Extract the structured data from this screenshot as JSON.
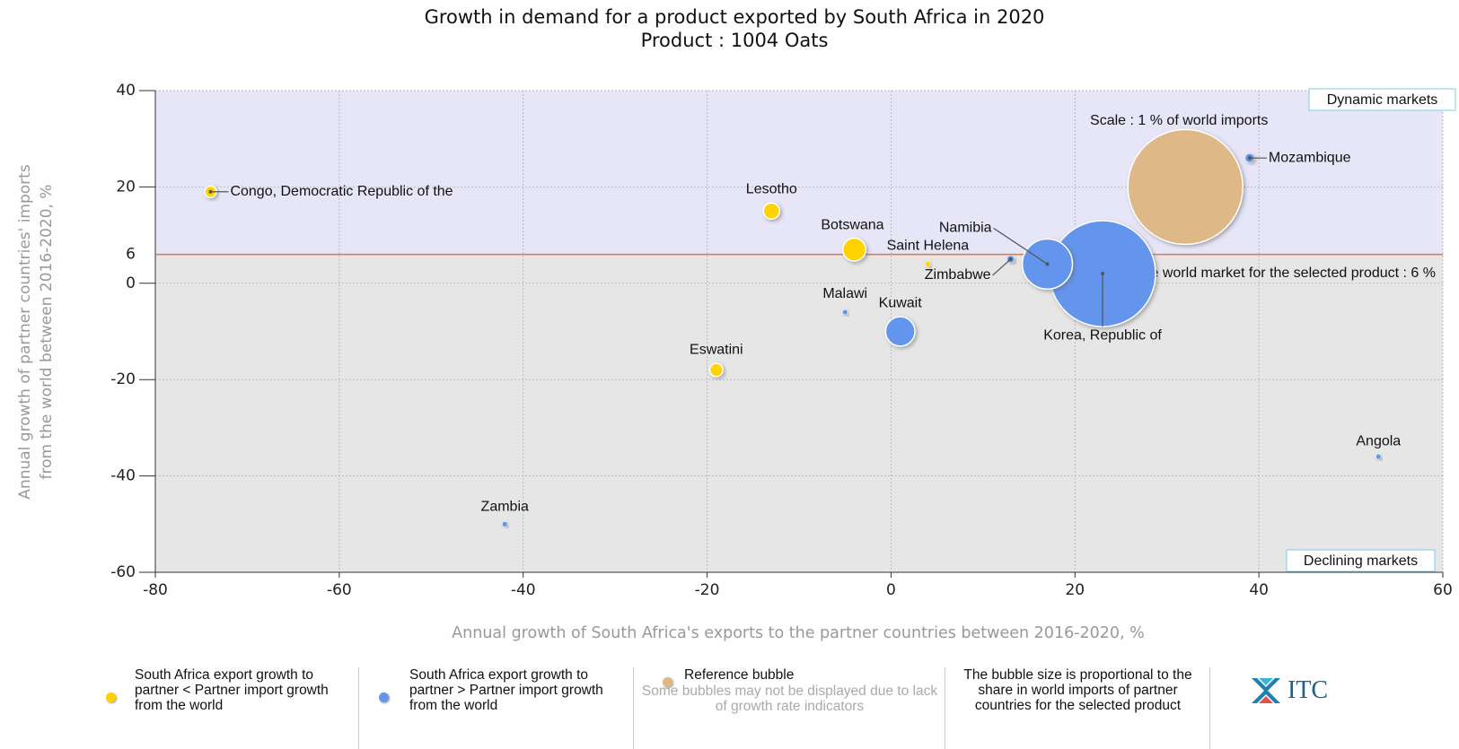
{
  "chart_data": {
    "type": "bubble",
    "title": "Growth in demand for a product exported by South Africa in 2020",
    "subtitle": "Product : 1004 Oats",
    "x_label": "Annual growth of South Africa's exports to the partner countries between 2016-2020, %",
    "y_label": [
      "Annual growth of partner countries' imports",
      "from the world between 2016-2020, %"
    ],
    "xlim": [
      -80,
      60
    ],
    "xticks": [
      -80,
      -60,
      -40,
      -20,
      0,
      20,
      40,
      60
    ],
    "ylim": [
      -60,
      40
    ],
    "yticks": [
      -60,
      -40,
      -20,
      0,
      20,
      40
    ],
    "grid": true,
    "reference_line": {
      "value": 6,
      "label": "Growth of the world market for the selected product : 6 %",
      "color": "#f07040"
    },
    "upper_quadrant": "Dynamic markets",
    "lower_quadrant": "Declining markets",
    "upper_color": "#e6e6f8",
    "lower_color": "#e6e6e6",
    "scale_label": "Scale : 1 % of world imports",
    "series": [
      {
        "name": "South Africa export growth to partner < Partner import growth from the world",
        "color": "#ffd200",
        "labels": [
          "Congo, Democratic Republic of the",
          "Lesotho",
          "Botswana",
          "Saint Helena",
          "Eswatini"
        ],
        "x": [
          -74,
          -13,
          -4,
          4,
          -19
        ],
        "values": [
          19,
          15,
          7,
          4,
          -18
        ],
        "sizes": [
          0.01,
          0.02,
          0.04,
          0.002,
          0.013
        ]
      },
      {
        "name": "South Africa export growth to partner > Partner import growth from the world",
        "color": "#6495ed",
        "labels": [
          "Zimbabwe",
          "Namibia",
          "Korea, Republic of",
          "Mozambique",
          "Malawi",
          "Kuwait",
          "Zambia",
          "Angola"
        ],
        "x": [
          13,
          17,
          23,
          39,
          -5,
          1,
          -42,
          53
        ],
        "values": [
          5,
          4,
          2,
          26,
          -6,
          -10,
          -50,
          -36
        ],
        "sizes": [
          0.004,
          0.19,
          0.85,
          0.006,
          0.002,
          0.065,
          0.002,
          0.002
        ]
      },
      {
        "name": "Reference bubble",
        "color": "#deb887",
        "x": [
          32
        ],
        "values": [
          20
        ],
        "sizes": [
          1
        ]
      }
    ],
    "legend_notes": [
      "Some bubbles may not be displayed due to lack of growth rate indicators",
      "The bubble size is proportional to the share in world imports of partner countries for the selected product"
    ],
    "logo": "ITC"
  }
}
